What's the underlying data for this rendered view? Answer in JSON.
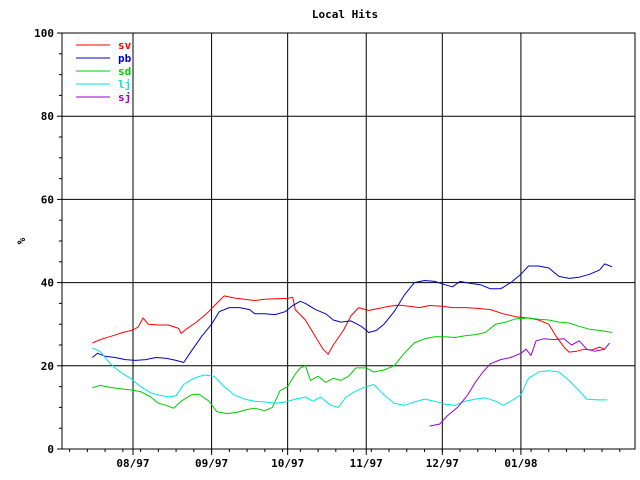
{
  "chart_data": {
    "type": "line",
    "title": "Local Hits",
    "xlabel": "",
    "ylabel": "%",
    "ylim": [
      0,
      100
    ],
    "yticks": [
      0,
      20,
      40,
      60,
      80,
      100
    ],
    "xlim": [
      "1997-07-04",
      "1998-02-15"
    ],
    "xticks": [
      {
        "date": "1997-08-01",
        "label": "08/97"
      },
      {
        "date": "1997-09-01",
        "label": "09/97"
      },
      {
        "date": "1997-10-01",
        "label": "10/97"
      },
      {
        "date": "1997-11-01",
        "label": "11/97"
      },
      {
        "date": "1997-12-01",
        "label": "12/97"
      },
      {
        "date": "1998-01-01",
        "label": "01/98"
      }
    ],
    "grid": true,
    "legend_position": "top-left",
    "series": [
      {
        "name": "sv",
        "color": "#ff0000",
        "points": [
          [
            "1997-07-16",
            25.5
          ],
          [
            "1997-07-20",
            26.5
          ],
          [
            "1997-07-24",
            27.2
          ],
          [
            "1997-07-28",
            28.0
          ],
          [
            "1997-08-01",
            28.6
          ],
          [
            "1997-08-03",
            29.3
          ],
          [
            "1997-08-05",
            31.5
          ],
          [
            "1997-08-07",
            30.0
          ],
          [
            "1997-08-11",
            29.8
          ],
          [
            "1997-08-15",
            29.8
          ],
          [
            "1997-08-19",
            29.0
          ],
          [
            "1997-08-20",
            27.8
          ],
          [
            "1997-08-22",
            28.8
          ],
          [
            "1997-08-26",
            30.5
          ],
          [
            "1997-08-30",
            32.5
          ],
          [
            "1997-09-03",
            35.0
          ],
          [
            "1997-09-06",
            36.8
          ],
          [
            "1997-09-10",
            36.3
          ],
          [
            "1997-09-14",
            36.0
          ],
          [
            "1997-09-18",
            35.7
          ],
          [
            "1997-09-22",
            36.0
          ],
          [
            "1997-09-26",
            36.1
          ],
          [
            "1997-10-01",
            36.2
          ],
          [
            "1997-10-03",
            36.5
          ],
          [
            "1997-10-04",
            33.5
          ],
          [
            "1997-10-08",
            31.0
          ],
          [
            "1997-10-12",
            27.0
          ],
          [
            "1997-10-15",
            24.0
          ],
          [
            "1997-10-17",
            22.8
          ],
          [
            "1997-10-19",
            25.0
          ],
          [
            "1997-10-23",
            28.5
          ],
          [
            "1997-10-26",
            32.0
          ],
          [
            "1997-10-29",
            34.0
          ],
          [
            "1997-11-02",
            33.3
          ],
          [
            "1997-11-06",
            33.8
          ],
          [
            "1997-11-10",
            34.3
          ],
          [
            "1997-11-14",
            34.6
          ],
          [
            "1997-11-18",
            34.3
          ],
          [
            "1997-11-22",
            34.0
          ],
          [
            "1997-11-26",
            34.5
          ],
          [
            "1997-12-01",
            34.3
          ],
          [
            "1997-12-05",
            34.0
          ],
          [
            "1997-12-10",
            34.0
          ],
          [
            "1997-12-15",
            33.8
          ],
          [
            "1997-12-20",
            33.5
          ],
          [
            "1997-12-25",
            32.5
          ],
          [
            "1997-12-30",
            31.8
          ],
          [
            "1998-01-04",
            31.5
          ],
          [
            "1998-01-08",
            31.0
          ],
          [
            "1998-01-12",
            30.0
          ],
          [
            "1998-01-15",
            27.0
          ],
          [
            "1998-01-18",
            24.5
          ],
          [
            "1998-01-20",
            23.3
          ],
          [
            "1998-01-23",
            23.5
          ],
          [
            "1998-01-26",
            24.0
          ],
          [
            "1998-01-29",
            23.8
          ],
          [
            "1998-02-01",
            24.5
          ],
          [
            "1998-02-03",
            24.0
          ]
        ]
      },
      {
        "name": "pb",
        "color": "#0000cc",
        "points": [
          [
            "1997-07-16",
            22.0
          ],
          [
            "1997-07-18",
            23.0
          ],
          [
            "1997-07-21",
            22.3
          ],
          [
            "1997-07-25",
            22.0
          ],
          [
            "1997-07-29",
            21.5
          ],
          [
            "1997-08-02",
            21.3
          ],
          [
            "1997-08-06",
            21.5
          ],
          [
            "1997-08-10",
            22.0
          ],
          [
            "1997-08-14",
            21.8
          ],
          [
            "1997-08-18",
            21.3
          ],
          [
            "1997-08-21",
            20.8
          ],
          [
            "1997-08-24",
            23.5
          ],
          [
            "1997-08-28",
            27.0
          ],
          [
            "1997-09-01",
            30.0
          ],
          [
            "1997-09-04",
            33.0
          ],
          [
            "1997-09-08",
            34.0
          ],
          [
            "1997-09-12",
            34.0
          ],
          [
            "1997-09-16",
            33.5
          ],
          [
            "1997-09-18",
            32.5
          ],
          [
            "1997-09-22",
            32.5
          ],
          [
            "1997-09-26",
            32.3
          ],
          [
            "1997-09-30",
            33.0
          ],
          [
            "1997-10-03",
            34.5
          ],
          [
            "1997-10-06",
            35.5
          ],
          [
            "1997-10-08",
            35.0
          ],
          [
            "1997-10-12",
            33.5
          ],
          [
            "1997-10-16",
            32.5
          ],
          [
            "1997-10-19",
            31.0
          ],
          [
            "1997-10-22",
            30.5
          ],
          [
            "1997-10-26",
            30.8
          ],
          [
            "1997-10-30",
            29.5
          ],
          [
            "1997-11-02",
            28.0
          ],
          [
            "1997-11-05",
            28.5
          ],
          [
            "1997-11-08",
            30.0
          ],
          [
            "1997-11-12",
            33.0
          ],
          [
            "1997-11-16",
            37.0
          ],
          [
            "1997-11-20",
            40.0
          ],
          [
            "1997-11-24",
            40.5
          ],
          [
            "1997-11-28",
            40.3
          ],
          [
            "1997-12-02",
            39.5
          ],
          [
            "1997-12-05",
            39.0
          ],
          [
            "1997-12-08",
            40.3
          ],
          [
            "1997-12-12",
            39.8
          ],
          [
            "1997-12-16",
            39.5
          ],
          [
            "1997-12-20",
            38.5
          ],
          [
            "1997-12-24",
            38.5
          ],
          [
            "1997-12-28",
            40.0
          ],
          [
            "1998-01-01",
            42.0
          ],
          [
            "1998-01-04",
            44.0
          ],
          [
            "1998-01-08",
            44.0
          ],
          [
            "1998-01-12",
            43.5
          ],
          [
            "1998-01-16",
            41.5
          ],
          [
            "1998-01-20",
            41.0
          ],
          [
            "1998-01-24",
            41.3
          ],
          [
            "1998-01-28",
            42.0
          ],
          [
            "1998-02-01",
            43.0
          ],
          [
            "1998-02-03",
            44.5
          ],
          [
            "1998-02-06",
            43.8
          ]
        ]
      },
      {
        "name": "sd",
        "color": "#00cc00",
        "points": [
          [
            "1997-07-16",
            14.7
          ],
          [
            "1997-07-19",
            15.3
          ],
          [
            "1997-07-23",
            14.8
          ],
          [
            "1997-07-27",
            14.5
          ],
          [
            "1997-07-31",
            14.2
          ],
          [
            "1997-08-04",
            13.8
          ],
          [
            "1997-08-08",
            12.5
          ],
          [
            "1997-08-11",
            11.0
          ],
          [
            "1997-08-14",
            10.5
          ],
          [
            "1997-08-17",
            9.8
          ],
          [
            "1997-08-20",
            11.5
          ],
          [
            "1997-08-24",
            13.0
          ],
          [
            "1997-08-27",
            13.2
          ],
          [
            "1997-08-31",
            11.5
          ],
          [
            "1997-09-03",
            9.0
          ],
          [
            "1997-09-07",
            8.5
          ],
          [
            "1997-09-11",
            8.8
          ],
          [
            "1997-09-15",
            9.5
          ],
          [
            "1997-09-18",
            9.8
          ],
          [
            "1997-09-22",
            9.2
          ],
          [
            "1997-09-25",
            10.0
          ],
          [
            "1997-09-28",
            14.0
          ],
          [
            "1997-10-01",
            15.0
          ],
          [
            "1997-10-04",
            18.0
          ],
          [
            "1997-10-06",
            19.5
          ],
          [
            "1997-10-08",
            20.0
          ],
          [
            "1997-10-10",
            16.5
          ],
          [
            "1997-10-13",
            17.5
          ],
          [
            "1997-10-16",
            16.0
          ],
          [
            "1997-10-19",
            17.0
          ],
          [
            "1997-10-22",
            16.5
          ],
          [
            "1997-10-25",
            17.5
          ],
          [
            "1997-10-28",
            19.5
          ],
          [
            "1997-11-01",
            19.5
          ],
          [
            "1997-11-04",
            18.5
          ],
          [
            "1997-11-08",
            19.0
          ],
          [
            "1997-11-12",
            20.0
          ],
          [
            "1997-11-16",
            23.0
          ],
          [
            "1997-11-20",
            25.5
          ],
          [
            "1997-11-24",
            26.5
          ],
          [
            "1997-11-28",
            27.0
          ],
          [
            "1997-12-02",
            27.0
          ],
          [
            "1997-12-06",
            26.8
          ],
          [
            "1997-12-10",
            27.2
          ],
          [
            "1997-12-14",
            27.5
          ],
          [
            "1997-12-18",
            28.0
          ],
          [
            "1997-12-22",
            30.0
          ],
          [
            "1997-12-26",
            30.5
          ],
          [
            "1997-12-30",
            31.3
          ],
          [
            "1998-01-04",
            31.5
          ],
          [
            "1998-01-08",
            31.2
          ],
          [
            "1998-01-12",
            31.0
          ],
          [
            "1998-01-16",
            30.5
          ],
          [
            "1998-01-20",
            30.3
          ],
          [
            "1998-01-24",
            29.5
          ],
          [
            "1998-01-28",
            28.8
          ],
          [
            "1998-02-01",
            28.5
          ],
          [
            "1998-02-06",
            28.0
          ]
        ]
      },
      {
        "name": "lj",
        "color": "#00e5e5",
        "points": [
          [
            "1997-07-16",
            24.3
          ],
          [
            "1997-07-19",
            23.5
          ],
          [
            "1997-07-23",
            20.5
          ],
          [
            "1997-07-27",
            18.5
          ],
          [
            "1997-07-31",
            17.0
          ],
          [
            "1997-08-04",
            15.0
          ],
          [
            "1997-08-08",
            13.5
          ],
          [
            "1997-08-11",
            13.0
          ],
          [
            "1997-08-15",
            12.5
          ],
          [
            "1997-08-18",
            12.8
          ],
          [
            "1997-08-21",
            15.5
          ],
          [
            "1997-08-25",
            17.0
          ],
          [
            "1997-08-29",
            17.8
          ],
          [
            "1997-09-02",
            17.5
          ],
          [
            "1997-09-06",
            15.0
          ],
          [
            "1997-09-10",
            13.0
          ],
          [
            "1997-09-14",
            12.0
          ],
          [
            "1997-09-18",
            11.5
          ],
          [
            "1997-09-22",
            11.3
          ],
          [
            "1997-09-26",
            11.0
          ],
          [
            "1997-09-30",
            11.3
          ],
          [
            "1997-10-04",
            12.0
          ],
          [
            "1997-10-08",
            12.5
          ],
          [
            "1997-10-11",
            11.5
          ],
          [
            "1997-10-14",
            12.5
          ],
          [
            "1997-10-18",
            10.5
          ],
          [
            "1997-10-21",
            10.0
          ],
          [
            "1997-10-24",
            12.5
          ],
          [
            "1997-10-28",
            14.0
          ],
          [
            "1997-11-01",
            15.0
          ],
          [
            "1997-11-04",
            15.5
          ],
          [
            "1997-11-08",
            13.0
          ],
          [
            "1997-11-12",
            11.0
          ],
          [
            "1997-11-16",
            10.5
          ],
          [
            "1997-11-20",
            11.3
          ],
          [
            "1997-11-24",
            12.0
          ],
          [
            "1997-11-28",
            11.5
          ],
          [
            "1997-12-02",
            10.8
          ],
          [
            "1997-12-06",
            10.5
          ],
          [
            "1997-12-10",
            11.5
          ],
          [
            "1997-12-14",
            12.0
          ],
          [
            "1997-12-18",
            12.3
          ],
          [
            "1997-12-22",
            11.5
          ],
          [
            "1997-12-25",
            10.5
          ],
          [
            "1997-12-28",
            11.5
          ],
          [
            "1998-01-01",
            13.0
          ],
          [
            "1998-01-04",
            17.0
          ],
          [
            "1998-01-08",
            18.5
          ],
          [
            "1998-01-12",
            18.8
          ],
          [
            "1998-01-16",
            18.5
          ],
          [
            "1998-01-20",
            16.5
          ],
          [
            "1998-01-24",
            14.0
          ],
          [
            "1998-01-27",
            12.0
          ],
          [
            "1998-01-31",
            11.8
          ],
          [
            "1998-02-04",
            11.8
          ]
        ]
      },
      {
        "name": "sj",
        "color": "#9900cc",
        "points": [
          [
            "1997-11-26",
            5.5
          ],
          [
            "1997-11-30",
            6.0
          ],
          [
            "1997-12-03",
            8.0
          ],
          [
            "1997-12-07",
            10.0
          ],
          [
            "1997-12-11",
            13.0
          ],
          [
            "1997-12-14",
            16.0
          ],
          [
            "1997-12-17",
            18.5
          ],
          [
            "1997-12-20",
            20.5
          ],
          [
            "1997-12-24",
            21.5
          ],
          [
            "1997-12-28",
            22.0
          ],
          [
            "1998-01-01",
            23.0
          ],
          [
            "1998-01-03",
            24.0
          ],
          [
            "1998-01-05",
            22.5
          ],
          [
            "1998-01-07",
            26.0
          ],
          [
            "1998-01-10",
            26.5
          ],
          [
            "1998-01-14",
            26.3
          ],
          [
            "1998-01-18",
            26.5
          ],
          [
            "1998-01-21",
            25.0
          ],
          [
            "1998-01-24",
            26.0
          ],
          [
            "1998-01-27",
            24.0
          ],
          [
            "1998-01-30",
            23.5
          ],
          [
            "1998-02-03",
            24.0
          ],
          [
            "1998-02-05",
            25.5
          ]
        ]
      }
    ]
  }
}
